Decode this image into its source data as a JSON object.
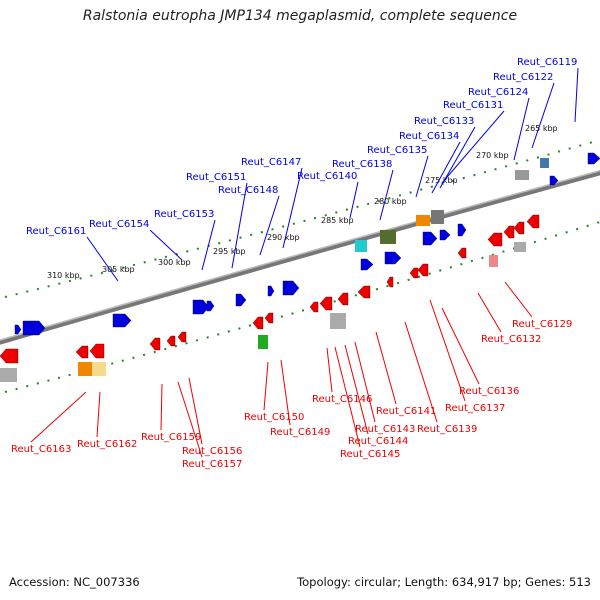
{
  "title": "Ralstonia eutropha JMP134 megaplasmid, complete sequence",
  "footer": {
    "accession": "Accession: NC_007336",
    "summary": "Topology: circular; Length: 634,917 bp; Genes: 513"
  },
  "colors": {
    "forward": "#0000dd",
    "reverse": "#ee0000",
    "backbone": "#808080",
    "ticks": "#228822"
  },
  "kbp_labels": [
    "265 kbp",
    "270 kbp",
    "275 kbp",
    "280 kbp",
    "285 kbp",
    "290 kbp",
    "295 kbp",
    "300 kbp",
    "305 kbp",
    "310 kbp"
  ],
  "forward_genes": [
    "Reut_C6119",
    "Reut_C6122",
    "Reut_C6124",
    "Reut_C6131",
    "Reut_C6133",
    "Reut_C6134",
    "Reut_C6135",
    "Reut_C6138",
    "Reut_C6140",
    "Reut_C6147",
    "Reut_C6151",
    "Reut_C6148",
    "Reut_C6153",
    "Reut_C6154",
    "Reut_C6161"
  ],
  "reverse_genes": [
    "Reut_C6129",
    "Reut_C6132",
    "Reut_C6136",
    "Reut_C6137",
    "Reut_C6139",
    "Reut_C6141",
    "Reut_C6143",
    "Reut_C6144",
    "Reut_C6145",
    "Reut_C6146",
    "Reut_C6149",
    "Reut_C6150",
    "Reut_C6156",
    "Reut_C6157",
    "Reut_C6159",
    "Reut_C6162",
    "Reut_C6163"
  ]
}
